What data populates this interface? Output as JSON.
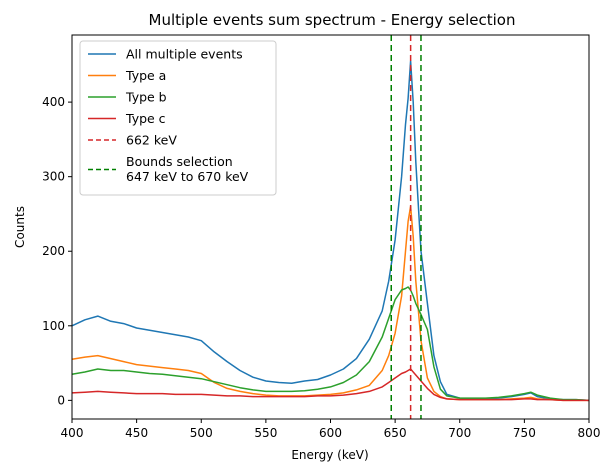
{
  "chart_data": {
    "type": "line",
    "title": "Multiple events sum spectrum - Energy selection",
    "xlabel": "Energy (keV)",
    "ylabel": "Counts",
    "xlim": [
      400,
      800
    ],
    "ylim": [
      -25,
      490
    ],
    "xticks": [
      400,
      450,
      500,
      550,
      600,
      650,
      700,
      750,
      800
    ],
    "yticks": [
      0,
      100,
      200,
      300,
      400
    ],
    "grid": false,
    "legend_position": "top-left",
    "series": [
      {
        "name": "All multiple events",
        "color": "#1f77b4",
        "style": "solid",
        "x": [
          400,
          410,
          420,
          430,
          440,
          450,
          460,
          470,
          480,
          490,
          500,
          510,
          520,
          530,
          540,
          550,
          560,
          570,
          580,
          590,
          600,
          610,
          620,
          630,
          640,
          645,
          650,
          655,
          658,
          660,
          662,
          664,
          666,
          670,
          675,
          680,
          685,
          690,
          700,
          710,
          720,
          730,
          740,
          750,
          755,
          760,
          770,
          780,
          790,
          800
        ],
        "y": [
          100,
          108,
          113,
          106,
          103,
          97,
          94,
          91,
          88,
          85,
          80,
          65,
          52,
          40,
          31,
          26,
          24,
          23,
          26,
          28,
          34,
          42,
          56,
          82,
          120,
          160,
          215,
          300,
          370,
          405,
          455,
          400,
          320,
          200,
          130,
          60,
          25,
          8,
          3,
          2,
          2,
          3,
          5,
          8,
          10,
          5,
          2,
          1,
          1,
          0
        ]
      },
      {
        "name": "Type a",
        "color": "#ff7f0e",
        "style": "solid",
        "x": [
          400,
          410,
          420,
          430,
          440,
          450,
          460,
          470,
          480,
          490,
          500,
          510,
          520,
          530,
          540,
          550,
          560,
          570,
          580,
          590,
          600,
          610,
          620,
          630,
          640,
          645,
          650,
          655,
          658,
          660,
          662,
          664,
          666,
          670,
          675,
          680,
          685,
          690,
          700,
          710,
          720,
          730,
          740,
          750,
          755,
          760,
          770,
          780,
          790,
          800
        ],
        "y": [
          55,
          58,
          60,
          56,
          52,
          48,
          46,
          44,
          42,
          40,
          36,
          24,
          16,
          12,
          9,
          7,
          6,
          6,
          6,
          7,
          8,
          10,
          14,
          20,
          40,
          60,
          90,
          140,
          200,
          240,
          260,
          220,
          160,
          80,
          30,
          12,
          5,
          2,
          1,
          1,
          1,
          1,
          2,
          3,
          4,
          2,
          1,
          0,
          0,
          0
        ]
      },
      {
        "name": "Type b",
        "color": "#2ca02c",
        "style": "solid",
        "x": [
          400,
          410,
          420,
          430,
          440,
          450,
          460,
          470,
          480,
          490,
          500,
          510,
          520,
          530,
          540,
          550,
          560,
          570,
          580,
          590,
          600,
          610,
          620,
          630,
          640,
          645,
          650,
          655,
          658,
          660,
          662,
          664,
          666,
          670,
          675,
          680,
          685,
          690,
          700,
          710,
          720,
          730,
          740,
          750,
          755,
          760,
          770,
          780,
          790,
          800
        ],
        "y": [
          35,
          38,
          42,
          40,
          40,
          38,
          36,
          35,
          33,
          31,
          29,
          25,
          21,
          17,
          14,
          12,
          12,
          12,
          13,
          15,
          18,
          24,
          34,
          52,
          85,
          110,
          135,
          148,
          150,
          152,
          148,
          140,
          130,
          115,
          95,
          45,
          15,
          6,
          3,
          3,
          3,
          4,
          6,
          9,
          11,
          7,
          3,
          1,
          1,
          0
        ]
      },
      {
        "name": "Type c",
        "color": "#d62728",
        "style": "solid",
        "x": [
          400,
          410,
          420,
          430,
          440,
          450,
          460,
          470,
          480,
          490,
          500,
          510,
          520,
          530,
          540,
          550,
          560,
          570,
          580,
          590,
          600,
          610,
          620,
          630,
          640,
          645,
          650,
          655,
          658,
          660,
          662,
          664,
          666,
          670,
          675,
          680,
          685,
          690,
          700,
          710,
          720,
          730,
          740,
          750,
          755,
          760,
          770,
          780,
          790,
          800
        ],
        "y": [
          10,
          11,
          12,
          11,
          10,
          9,
          9,
          9,
          8,
          8,
          8,
          7,
          6,
          6,
          5,
          5,
          5,
          5,
          5,
          6,
          6,
          7,
          9,
          12,
          18,
          24,
          30,
          36,
          38,
          40,
          42,
          38,
          34,
          26,
          16,
          8,
          4,
          2,
          1,
          1,
          1,
          1,
          1,
          2,
          2,
          1,
          1,
          0,
          0,
          0
        ]
      }
    ],
    "vlines": [
      {
        "name": "662 keV",
        "x": 662,
        "color": "#d62728",
        "style": "dashed"
      },
      {
        "name": "Bounds selection\n647 keV to 670 keV",
        "x": [
          647,
          670
        ],
        "color": "#008000",
        "style": "dashed"
      }
    ]
  }
}
